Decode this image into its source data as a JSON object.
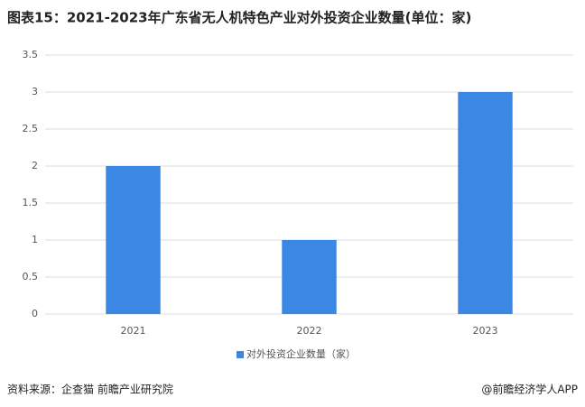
{
  "chart_data": {
    "type": "bar",
    "title": "图表15：2021-2023年广东省无人机特色产业对外投资企业数量(单位：家)",
    "categories": [
      "2021",
      "2022",
      "2023"
    ],
    "series": [
      {
        "name": "对外投资企业数量（家）",
        "color": "#3b87e4",
        "values": [
          2,
          1,
          3
        ]
      }
    ],
    "ylim": [
      0,
      3.5
    ],
    "yticks": [
      0,
      0.5,
      1,
      1.5,
      2,
      2.5,
      3,
      3.5
    ],
    "grid": true,
    "legend": "bottom",
    "source": "资料来源：企查猫 前瞻产业研究院",
    "credit": "@前瞻经济学人APP"
  }
}
